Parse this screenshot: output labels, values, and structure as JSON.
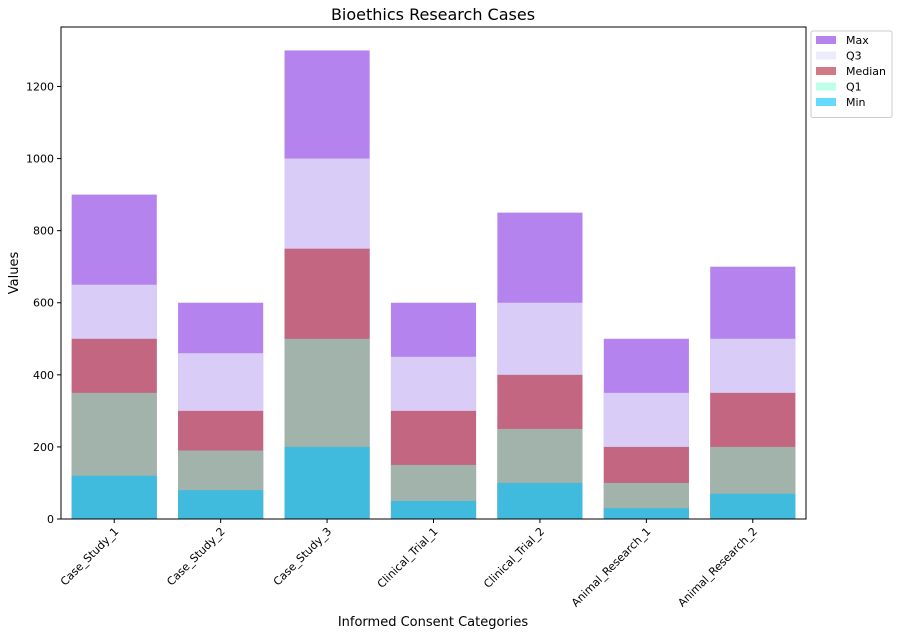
{
  "chart_data": {
    "type": "bar",
    "stacked": false,
    "title": "Bioethics Research Cases",
    "xlabel": "Informed Consent Categories",
    "ylabel": "Values",
    "categories": [
      "Case_Study_1",
      "Case_Study_2",
      "Case_Study_3",
      "Clinical_Trial_1",
      "Clinical_Trial_2",
      "Animal_Research_1",
      "Animal_Research_2"
    ],
    "series": [
      {
        "name": "Max",
        "color": "#9B59E8",
        "opacity": 0.75,
        "values": [
          900,
          600,
          1300,
          600,
          850,
          500,
          700
        ]
      },
      {
        "name": "Q3",
        "color": "#E6E6FA",
        "opacity": 0.75,
        "values": [
          650,
          460,
          1000,
          450,
          600,
          350,
          500
        ]
      },
      {
        "name": "Median",
        "color": "#B22234",
        "opacity": 0.6,
        "values": [
          500,
          300,
          750,
          300,
          400,
          200,
          350
        ]
      },
      {
        "name": "Q1",
        "color": "#7FFFD4",
        "opacity": 0.5,
        "values": [
          350,
          190,
          500,
          150,
          250,
          100,
          200
        ]
      },
      {
        "name": "Min",
        "color": "#00BFFF",
        "opacity": 0.6,
        "values": [
          120,
          80,
          200,
          50,
          100,
          30,
          70
        ]
      }
    ],
    "ylim": [
      0,
      1365
    ],
    "yticks": [
      0,
      200,
      400,
      600,
      800,
      1000,
      1200
    ],
    "legend": "upper-right-outside",
    "grid": false
  }
}
